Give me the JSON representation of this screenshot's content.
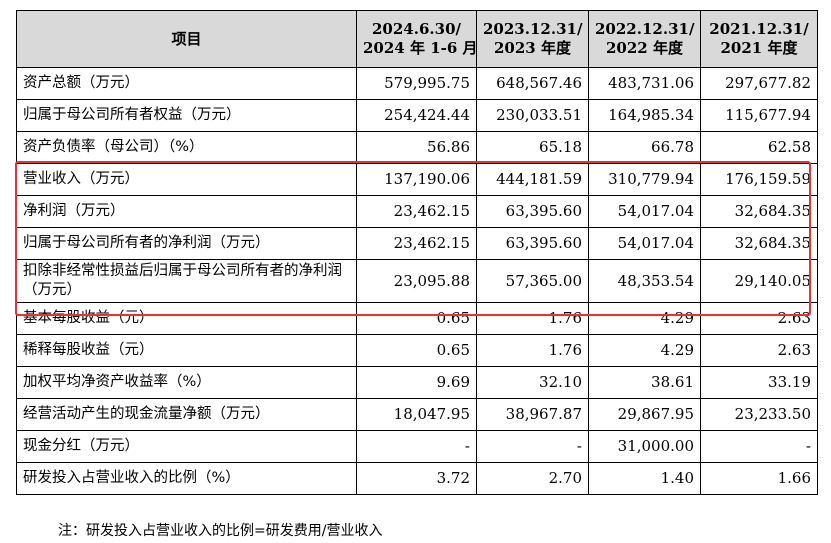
{
  "table": {
    "headers": {
      "item": "项目",
      "cols": [
        {
          "line1": "2024.6.30/",
          "line2": "2024 年 1-6 月"
        },
        {
          "line1": "2023.12.31/",
          "line2": "2023 年度"
        },
        {
          "line1": "2022.12.31/",
          "line2": "2022 年度"
        },
        {
          "line1": "2021.12.31/",
          "line2": "2021 年度"
        }
      ]
    },
    "rows": [
      {
        "label": "资产总额（万元）",
        "values": [
          "579,995.75",
          "648,567.46",
          "483,731.06",
          "297,677.82"
        ]
      },
      {
        "label": "归属于母公司所有者权益（万元）",
        "values": [
          "254,424.44",
          "230,033.51",
          "164,985.34",
          "115,677.94"
        ]
      },
      {
        "label": "资产负债率（母公司）（%）",
        "values": [
          "56.86",
          "65.18",
          "66.78",
          "62.58"
        ]
      },
      {
        "label": "营业收入（万元）",
        "values": [
          "137,190.06",
          "444,181.59",
          "310,779.94",
          "176,159.59"
        ]
      },
      {
        "label": "净利润（万元）",
        "values": [
          "23,462.15",
          "63,395.60",
          "54,017.04",
          "32,684.35"
        ]
      },
      {
        "label": "归属于母公司所有者的净利润（万元）",
        "values": [
          "23,462.15",
          "63,395.60",
          "54,017.04",
          "32,684.35"
        ]
      },
      {
        "label": "扣除非经常性损益后归属于母公司所有者的净利润（万元）",
        "values": [
          "23,095.88",
          "57,365.00",
          "48,353.54",
          "29,140.05"
        ]
      },
      {
        "label": "基本每股收益（元）",
        "values": [
          "0.65",
          "1.76",
          "4.29",
          "2.63"
        ]
      },
      {
        "label": "稀释每股收益（元）",
        "values": [
          "0.65",
          "1.76",
          "4.29",
          "2.63"
        ]
      },
      {
        "label": "加权平均净资产收益率（%）",
        "values": [
          "9.69",
          "32.10",
          "38.61",
          "33.19"
        ]
      },
      {
        "label": "经营活动产生的现金流量净额（万元）",
        "values": [
          "18,047.95",
          "38,967.87",
          "29,867.95",
          "23,233.50"
        ]
      },
      {
        "label": "现金分红（万元）",
        "values": [
          "-",
          "-",
          "31,000.00",
          "-"
        ]
      },
      {
        "label": "研发投入占营业收入的比例（%）",
        "values": [
          "3.72",
          "2.70",
          "1.40",
          "1.66"
        ]
      }
    ]
  },
  "highlight_color": "#e8323a",
  "note": "注：研发投入占营业收入的比例=研发费用/营业收入"
}
